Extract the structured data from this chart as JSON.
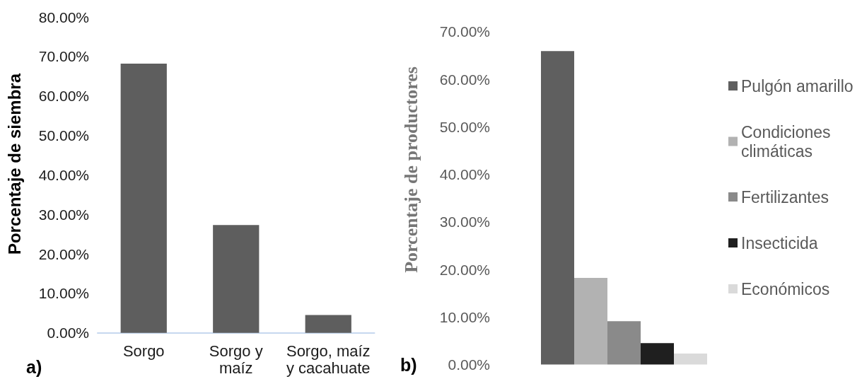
{
  "chart_data": [
    {
      "type": "bar",
      "title": "a)",
      "ylabel": "Porcentaje de siembra",
      "categories": [
        "Sorgo",
        "Sorgo y maíz",
        "Sorgo, maíz y cacahuate"
      ],
      "values": [
        68.2,
        27.3,
        4.5
      ],
      "color": "#5e5e5e",
      "ylim": [
        0,
        80
      ],
      "yticks": [
        {
          "value": 0,
          "label": "0.00%"
        },
        {
          "value": 10,
          "label": "10.00%"
        },
        {
          "value": 20,
          "label": "20.00%"
        },
        {
          "value": 30,
          "label": "30.00%"
        },
        {
          "value": 40,
          "label": "40.00%"
        },
        {
          "value": 50,
          "label": "50.00%"
        },
        {
          "value": 60,
          "label": "60.00%"
        },
        {
          "value": 70,
          "label": "70.00%"
        },
        {
          "value": 80,
          "label": "80.00%"
        }
      ]
    },
    {
      "type": "bar",
      "title": "b)",
      "ylabel": "Porcentaje de productores",
      "categories": [
        null
      ],
      "series": [
        {
          "name": "Pulgón amarillo",
          "color": "#5f5f5f",
          "values": [
            65.9
          ]
        },
        {
          "name": "Condiciones climáticas",
          "color": "#b2b2b2",
          "values": [
            18.2
          ]
        },
        {
          "name": "Fertilizantes",
          "color": "#8a8a8a",
          "values": [
            9.1
          ]
        },
        {
          "name": "Insecticida",
          "color": "#1f1f1f",
          "values": [
            4.5
          ]
        },
        {
          "name": "Económicos",
          "color": "#dadada",
          "values": [
            2.3
          ]
        }
      ],
      "ylim": [
        0,
        70
      ],
      "yticks": [
        {
          "value": 0,
          "label": "0.00%"
        },
        {
          "value": 10,
          "label": "10.00%"
        },
        {
          "value": 20,
          "label": "20.00%"
        },
        {
          "value": 30,
          "label": "30.00%"
        },
        {
          "value": 40,
          "label": "40.00%"
        },
        {
          "value": 50,
          "label": "50.00%"
        },
        {
          "value": 60,
          "label": "60.00%"
        },
        {
          "value": 70,
          "label": "70.00%"
        }
      ],
      "legend": "right",
      "tick_labels": "y"
    }
  ]
}
